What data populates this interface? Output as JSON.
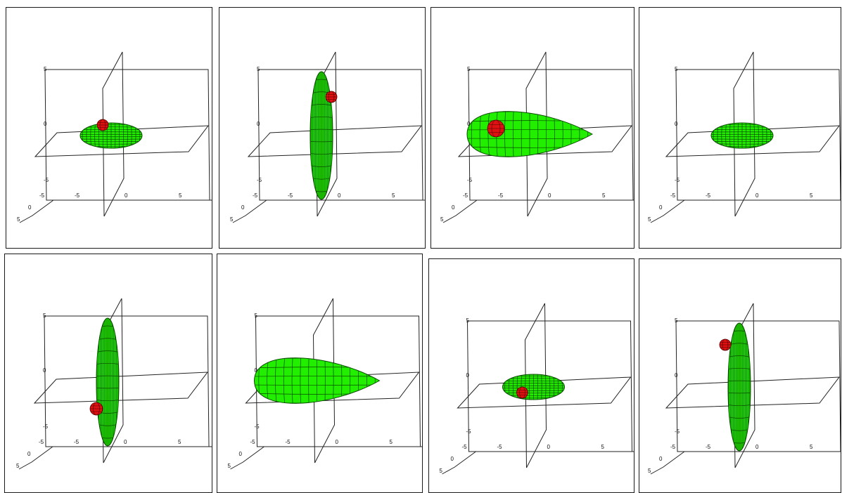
{
  "colors": {
    "background": "#ffffff",
    "frame": "#1a1a1a",
    "axes": "#222222",
    "body_fill": "#22ee00",
    "body_mesh": "#0a4a00",
    "marker_fill": "#dd1111",
    "marker_mesh": "#550000"
  },
  "axis_labels": {
    "z_top": "5",
    "z_mid": "0",
    "z_bottom": "-5",
    "x_left": "-5",
    "x_mid": "0",
    "x_right": "5",
    "y_far": "-5",
    "y_mid": "0",
    "y_near": "5"
  },
  "panels": [
    {
      "label": "row-1-panel-1",
      "shape": "small-flat-ellipsoid",
      "marker": "top-center"
    },
    {
      "label": "row-1-panel-2",
      "shape": "tall-vertical-ellipsoid",
      "marker": "upper-right"
    },
    {
      "label": "row-1-panel-3",
      "shape": "large-horizontal-teardrop",
      "marker": "left"
    },
    {
      "label": "row-1-panel-4",
      "shape": "small-flat-ellipsoid",
      "marker": "none"
    },
    {
      "label": "row-2-panel-1",
      "shape": "tall-vertical-ellipsoid",
      "marker": "lower-left"
    },
    {
      "label": "row-2-panel-2",
      "shape": "large-horizontal-teardrop",
      "marker": "none"
    },
    {
      "label": "row-2-panel-3",
      "shape": "small-flat-ellipsoid",
      "marker": "bottom"
    },
    {
      "label": "row-2-panel-4",
      "shape": "tall-vertical-ellipsoid",
      "marker": "upper-left"
    }
  ]
}
